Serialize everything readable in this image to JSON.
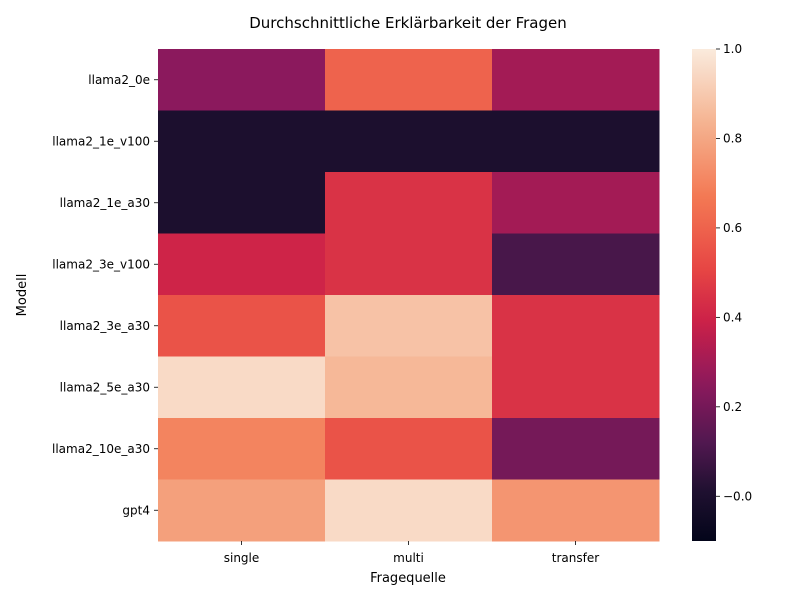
{
  "chart_data": {
    "type": "heatmap",
    "title": "Durchschnittliche Erklärbarkeit der Fragen",
    "xlabel": "Fragequelle",
    "ylabel": "Modell",
    "columns": [
      "single",
      "multi",
      "transfer"
    ],
    "rows": [
      "llama2_0e",
      "llama2_1e_v100",
      "llama2_1e_a30",
      "llama2_3e_v100",
      "llama2_3e_a30",
      "llama2_5e_a30",
      "llama2_10e_a30",
      "gpt4"
    ],
    "values": [
      [
        0.25,
        0.6,
        0.3
      ],
      [
        0.0,
        0.0,
        0.0
      ],
      [
        0.0,
        0.45,
        0.3
      ],
      [
        0.4,
        0.45,
        0.1
      ],
      [
        0.55,
        0.88,
        0.45
      ],
      [
        0.95,
        0.85,
        0.45
      ],
      [
        0.7,
        0.55,
        0.2
      ],
      [
        0.78,
        0.95,
        0.75
      ]
    ],
    "colorbar": {
      "range": [
        -0.1,
        1.0
      ],
      "ticks": [
        -0.0,
        0.2,
        0.4,
        0.6,
        0.8,
        1.0
      ],
      "tick_labels": [
        "−0.0",
        "0.2",
        "0.4",
        "0.6",
        "0.8",
        "1.0"
      ]
    },
    "colormap": "rocket",
    "grid": false,
    "legend": "colorbar-right"
  }
}
